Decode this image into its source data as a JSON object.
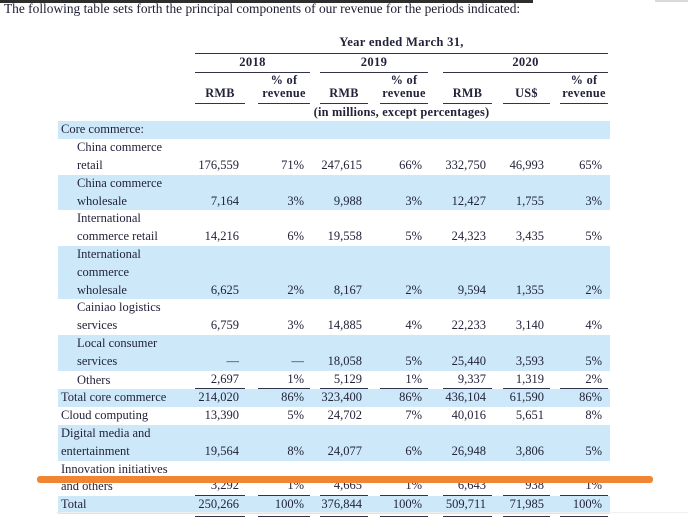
{
  "intro": {
    "text": "The following table sets forth the principal components of our revenue for the periods indicated:"
  },
  "table": {
    "group_header": "Year ended March 31,",
    "unit_note": "(in millions, except percentages)",
    "year_groups": [
      {
        "label": "2018"
      },
      {
        "label": "2019"
      },
      {
        "label": "2020"
      }
    ],
    "columns": [
      {
        "id": "rmb-2018",
        "lines": [
          "RMB"
        ]
      },
      {
        "id": "pct-revenue-2018",
        "lines": [
          "% of",
          "revenue"
        ]
      },
      {
        "id": "rmb-2019",
        "lines": [
          "RMB"
        ]
      },
      {
        "id": "pct-revenue-2019",
        "lines": [
          "% of",
          "revenue"
        ]
      },
      {
        "id": "rmb-2020",
        "lines": [
          "RMB"
        ]
      },
      {
        "id": "usd-2020",
        "lines": [
          "US$"
        ]
      },
      {
        "id": "pct-revenue-2020",
        "lines": [
          "% of",
          "revenue"
        ]
      }
    ],
    "rows": [
      {
        "label_lines": [
          "Core commerce:"
        ],
        "indent": false,
        "shaded": true,
        "rule": "none",
        "values": [
          "",
          "",
          "",
          "",
          "",
          "",
          ""
        ]
      },
      {
        "label_lines": [
          "China commerce",
          "retail"
        ],
        "indent": true,
        "shaded": false,
        "rule": "none",
        "values": [
          "176,559",
          "71%",
          "247,615",
          "66%",
          "332,750",
          "46,993",
          "65%"
        ]
      },
      {
        "label_lines": [
          "China commerce",
          "wholesale"
        ],
        "indent": true,
        "shaded": true,
        "rule": "none",
        "values": [
          "7,164",
          "3%",
          "9,988",
          "3%",
          "12,427",
          "1,755",
          "3%"
        ]
      },
      {
        "label_lines": [
          "International",
          "commerce retail"
        ],
        "indent": true,
        "shaded": false,
        "rule": "none",
        "values": [
          "14,216",
          "6%",
          "19,558",
          "5%",
          "24,323",
          "3,435",
          "5%"
        ]
      },
      {
        "label_lines": [
          "International",
          "commerce",
          "wholesale"
        ],
        "indent": true,
        "shaded": true,
        "rule": "none",
        "values": [
          "6,625",
          "2%",
          "8,167",
          "2%",
          "9,594",
          "1,355",
          "2%"
        ]
      },
      {
        "label_lines": [
          "Cainiao logistics",
          "services"
        ],
        "indent": true,
        "shaded": false,
        "rule": "none",
        "values": [
          "6,759",
          "3%",
          "14,885",
          "4%",
          "22,233",
          "3,140",
          "4%"
        ]
      },
      {
        "label_lines": [
          "Local consumer",
          "services"
        ],
        "indent": true,
        "shaded": true,
        "rule": "none",
        "values": [
          "—",
          "—",
          "18,058",
          "5%",
          "25,440",
          "3,593",
          "5%"
        ]
      },
      {
        "label_lines": [
          "Others"
        ],
        "indent": true,
        "shaded": false,
        "rule": "single",
        "values": [
          "2,697",
          "1%",
          "5,129",
          "1%",
          "9,337",
          "1,319",
          "2%"
        ]
      },
      {
        "label_lines": [
          "Total core commerce"
        ],
        "indent": false,
        "shaded": true,
        "rule": "none",
        "values": [
          "214,020",
          "86%",
          "323,400",
          "86%",
          "436,104",
          "61,590",
          "86%"
        ]
      },
      {
        "label_lines": [
          "Cloud computing"
        ],
        "indent": false,
        "shaded": false,
        "rule": "none",
        "values": [
          "13,390",
          "5%",
          "24,702",
          "7%",
          "40,016",
          "5,651",
          "8%"
        ]
      },
      {
        "label_lines": [
          "Digital media and",
          "entertainment"
        ],
        "indent": false,
        "shaded": true,
        "rule": "none",
        "values": [
          "19,564",
          "8%",
          "24,077",
          "6%",
          "26,948",
          "3,806",
          "5%"
        ]
      },
      {
        "label_lines": [
          "Innovation initiatives",
          "and others"
        ],
        "indent": false,
        "shaded": false,
        "rule": "single",
        "values": [
          "3,292",
          "1%",
          "4,665",
          "1%",
          "6,643",
          "938",
          "1%"
        ]
      },
      {
        "label_lines": [
          "Total"
        ],
        "indent": false,
        "shaded": true,
        "rule": "double",
        "values": [
          "250,266",
          "100%",
          "376,844",
          "100%",
          "509,711",
          "71,985",
          "100%"
        ]
      }
    ]
  },
  "annotation": {
    "type": "orange-highlight-line",
    "color": "#f08534"
  },
  "colors": {
    "row_shade": "#cde9f9",
    "text": "#23233b",
    "rule": "#33334a",
    "highlight": "#f08534"
  }
}
